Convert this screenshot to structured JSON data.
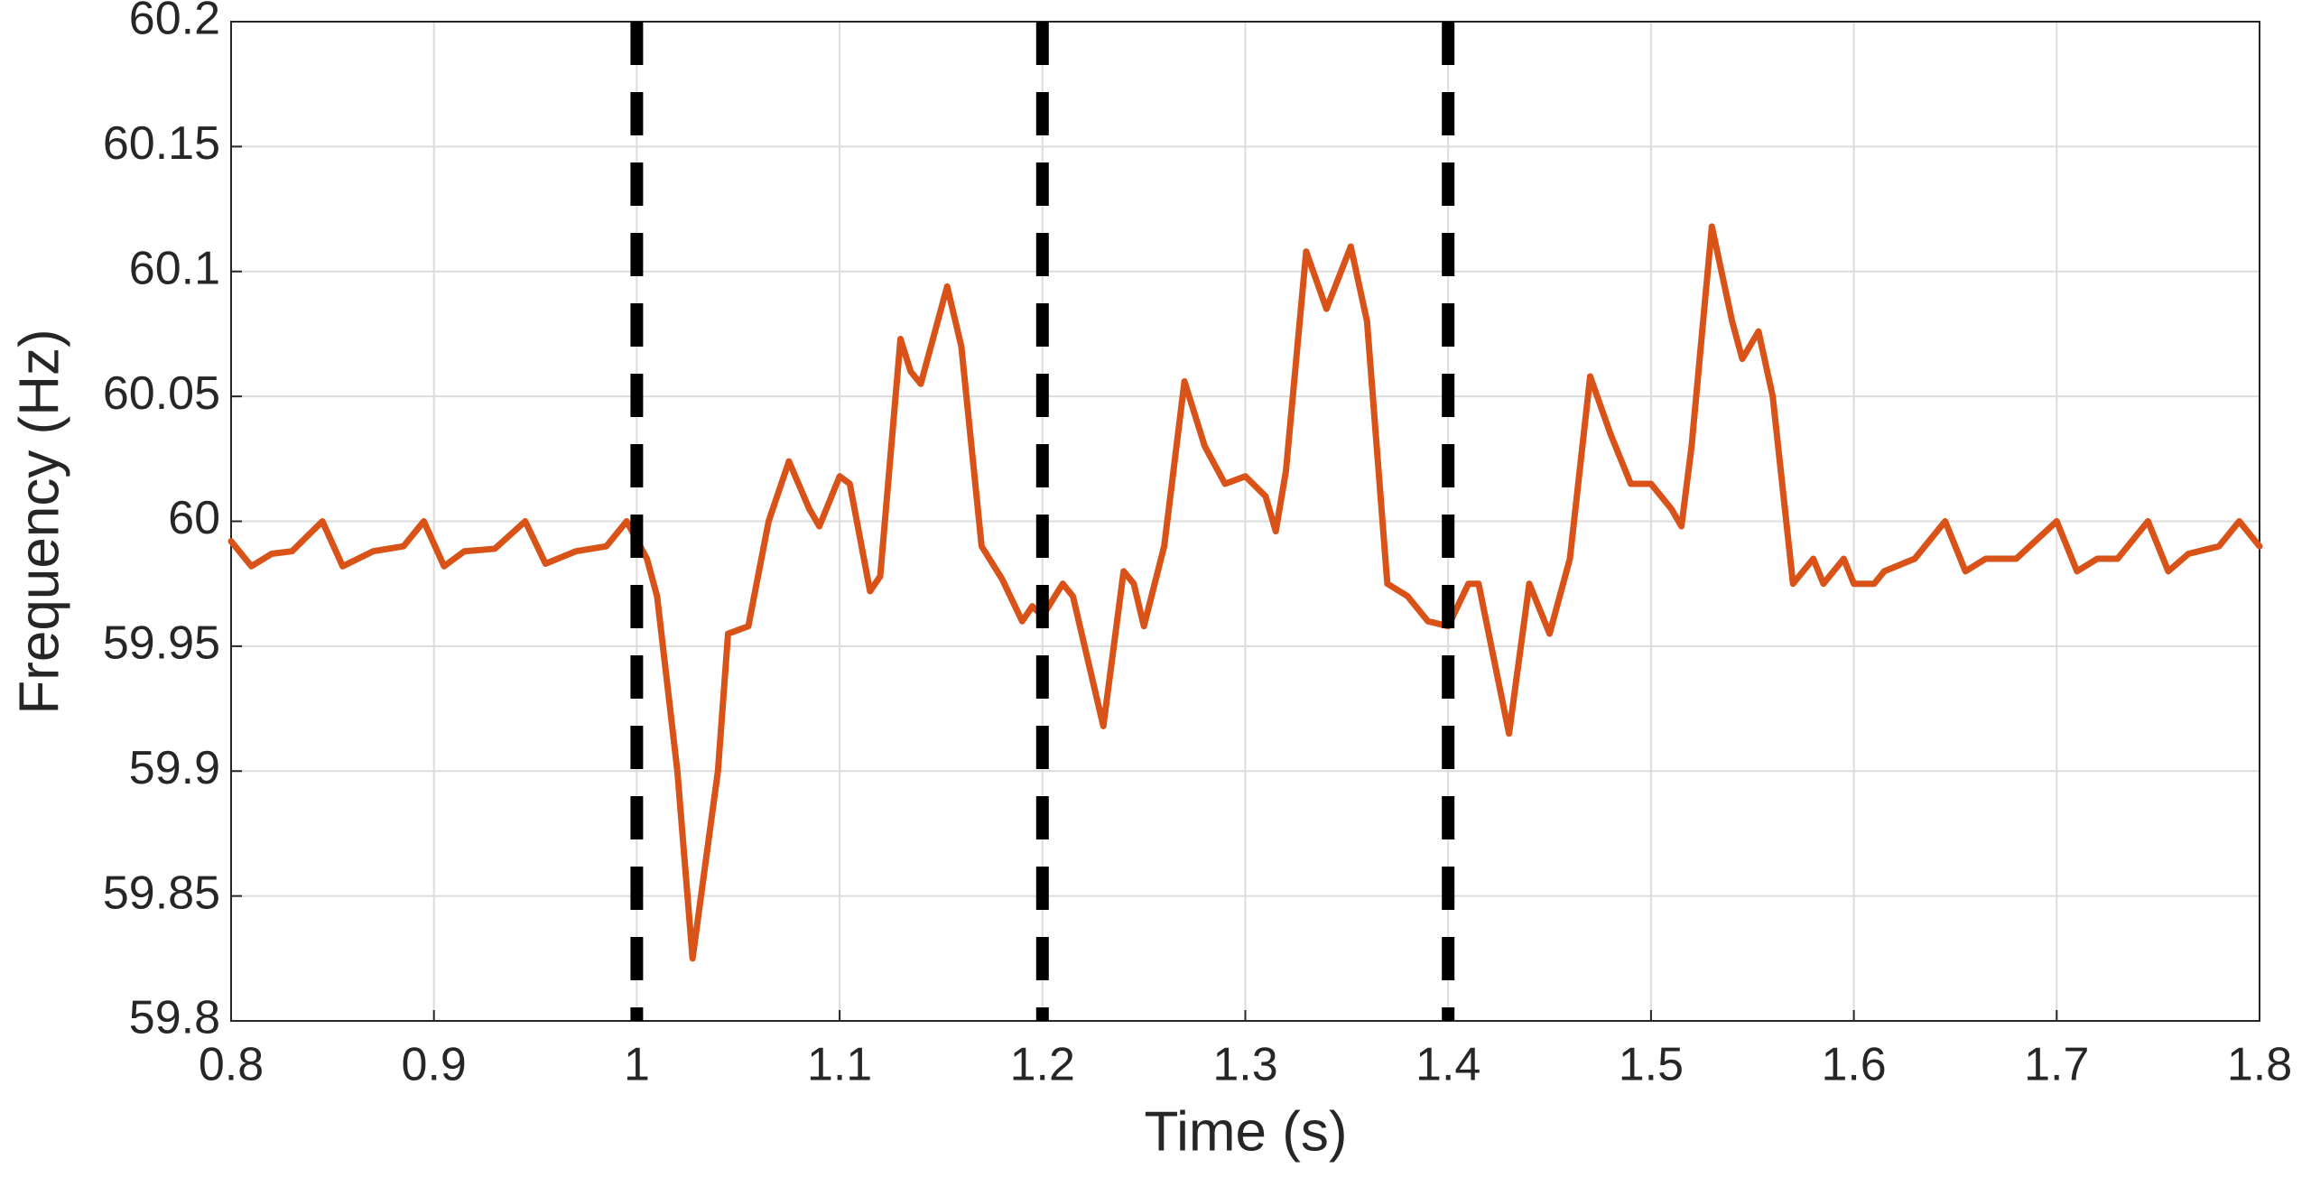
{
  "chart_data": {
    "type": "line",
    "x_label": "Time (s)",
    "y_label": "Frequency (Hz)",
    "x": [
      0.8,
      0.81,
      0.82,
      0.83,
      0.845,
      0.855,
      0.87,
      0.885,
      0.895,
      0.905,
      0.915,
      0.93,
      0.945,
      0.955,
      0.97,
      0.985,
      0.995,
      1.005,
      1.01,
      1.02,
      1.0275,
      1.04,
      1.045,
      1.055,
      1.065,
      1.075,
      1.085,
      1.09,
      1.1,
      1.105,
      1.115,
      1.12,
      1.13,
      1.135,
      1.14,
      1.153,
      1.16,
      1.17,
      1.18,
      1.19,
      1.195,
      1.2,
      1.21,
      1.215,
      1.23,
      1.24,
      1.245,
      1.25,
      1.26,
      1.27,
      1.28,
      1.29,
      1.3,
      1.31,
      1.315,
      1.32,
      1.33,
      1.34,
      1.352,
      1.36,
      1.37,
      1.38,
      1.39,
      1.4,
      1.41,
      1.415,
      1.43,
      1.44,
      1.45,
      1.46,
      1.47,
      1.48,
      1.49,
      1.5,
      1.51,
      1.515,
      1.52,
      1.53,
      1.54,
      1.545,
      1.553,
      1.56,
      1.57,
      1.58,
      1.585,
      1.595,
      1.6,
      1.61,
      1.615,
      1.63,
      1.645,
      1.655,
      1.665,
      1.68,
      1.7,
      1.71,
      1.72,
      1.73,
      1.745,
      1.755,
      1.765,
      1.78,
      1.79,
      1.8
    ],
    "series": [
      {
        "color": "#d95319",
        "values": [
          59.992,
          59.982,
          59.987,
          59.988,
          60.0,
          59.982,
          59.988,
          59.99,
          60.0,
          59.982,
          59.988,
          59.989,
          60.0,
          59.983,
          59.988,
          59.99,
          60.0,
          59.985,
          59.97,
          59.9,
          59.825,
          59.9,
          59.955,
          59.958,
          60.0,
          60.024,
          60.005,
          59.998,
          60.018,
          60.015,
          59.972,
          59.978,
          60.073,
          60.06,
          60.055,
          60.094,
          60.07,
          59.99,
          59.977,
          59.96,
          59.966,
          59.962,
          59.975,
          59.97,
          59.918,
          59.98,
          59.975,
          59.958,
          59.99,
          60.056,
          60.03,
          60.015,
          60.018,
          60.01,
          59.996,
          60.02,
          60.108,
          60.085,
          60.11,
          60.08,
          59.975,
          59.97,
          59.96,
          59.958,
          59.975,
          59.975,
          59.915,
          59.975,
          59.955,
          59.985,
          60.058,
          60.035,
          60.015,
          60.015,
          60.005,
          59.998,
          60.03,
          60.118,
          60.08,
          60.065,
          60.076,
          60.05,
          59.975,
          59.985,
          59.975,
          59.985,
          59.975,
          59.975,
          59.98,
          59.985,
          60.0,
          59.98,
          59.985,
          59.985,
          60.0,
          59.98,
          59.985,
          59.985,
          60.0,
          59.98,
          59.987,
          59.99,
          60.0,
          59.99
        ]
      }
    ],
    "vlines": [
      1,
      1.2,
      1.4
    ],
    "vline_color": "#000000",
    "xlim": [
      0.8,
      1.8
    ],
    "xticks": [
      0.8,
      0.9,
      1,
      1.1,
      1.2,
      1.3,
      1.4,
      1.5,
      1.6,
      1.7,
      1.8
    ],
    "ylim": [
      59.8,
      60.2
    ],
    "yticks": [
      59.8,
      59.85,
      59.9,
      59.95,
      60,
      60.05,
      60.1,
      60.15,
      60.2
    ],
    "grid": true
  }
}
